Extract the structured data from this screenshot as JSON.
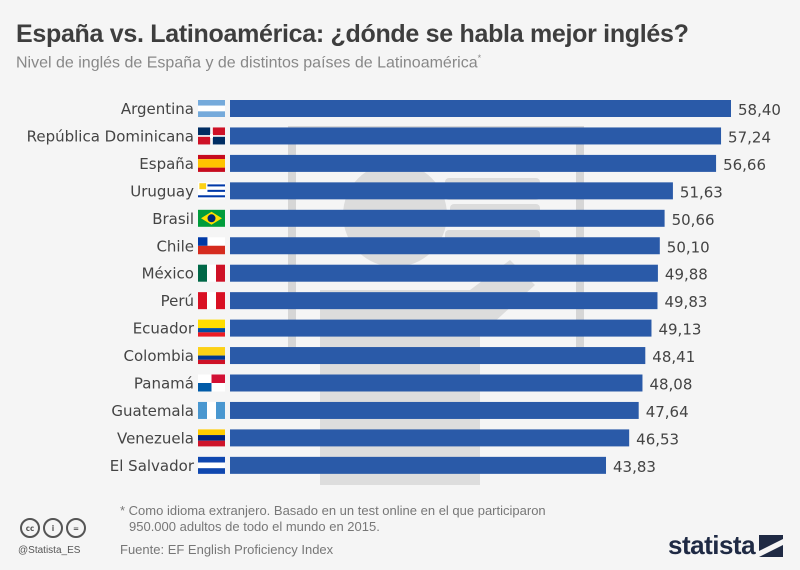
{
  "title": "España vs. Latinoamérica: ¿dónde se habla mejor inglés?",
  "subtitle": "Nivel de inglés de España y de distintos países de Latinoamérica",
  "subtitle_mark": "*",
  "chart_data": {
    "type": "bar",
    "orientation": "horizontal",
    "categories": [
      "Argentina",
      "República Dominicana",
      "España",
      "Uruguay",
      "Brasil",
      "Chile",
      "México",
      "Perú",
      "Ecuador",
      "Colombia",
      "Panamá",
      "Guatemala",
      "Venezuela",
      "El Salvador"
    ],
    "values": [
      58.4,
      57.24,
      56.66,
      51.63,
      50.66,
      50.1,
      49.88,
      49.83,
      49.13,
      48.41,
      48.08,
      47.64,
      46.53,
      43.83
    ],
    "value_labels": [
      "58,40",
      "57,24",
      "56,66",
      "51,63",
      "50,66",
      "50,10",
      "49,88",
      "49,83",
      "49,13",
      "48,41",
      "48,08",
      "47,64",
      "46,53",
      "43,83"
    ],
    "flags": [
      "argentina",
      "dominican-republic",
      "spain",
      "uruguay",
      "brazil",
      "chile",
      "mexico",
      "peru",
      "ecuador",
      "colombia",
      "panama",
      "guatemala",
      "venezuela",
      "el-salvador"
    ],
    "xlim": [
      0,
      60
    ],
    "grid": false,
    "bar_color": "#2a5aa8"
  },
  "footer": {
    "note_line1": "* Como idioma extranjero. Basado en un test online en el que participaron",
    "note_line2": "950.000 adultos de todo el mundo en 2015.",
    "source": "Fuente: EF English Proficiency Index",
    "handle": "@Statista_ES",
    "license_icons": [
      "cc",
      "by",
      "nd"
    ],
    "logo": "statista"
  }
}
